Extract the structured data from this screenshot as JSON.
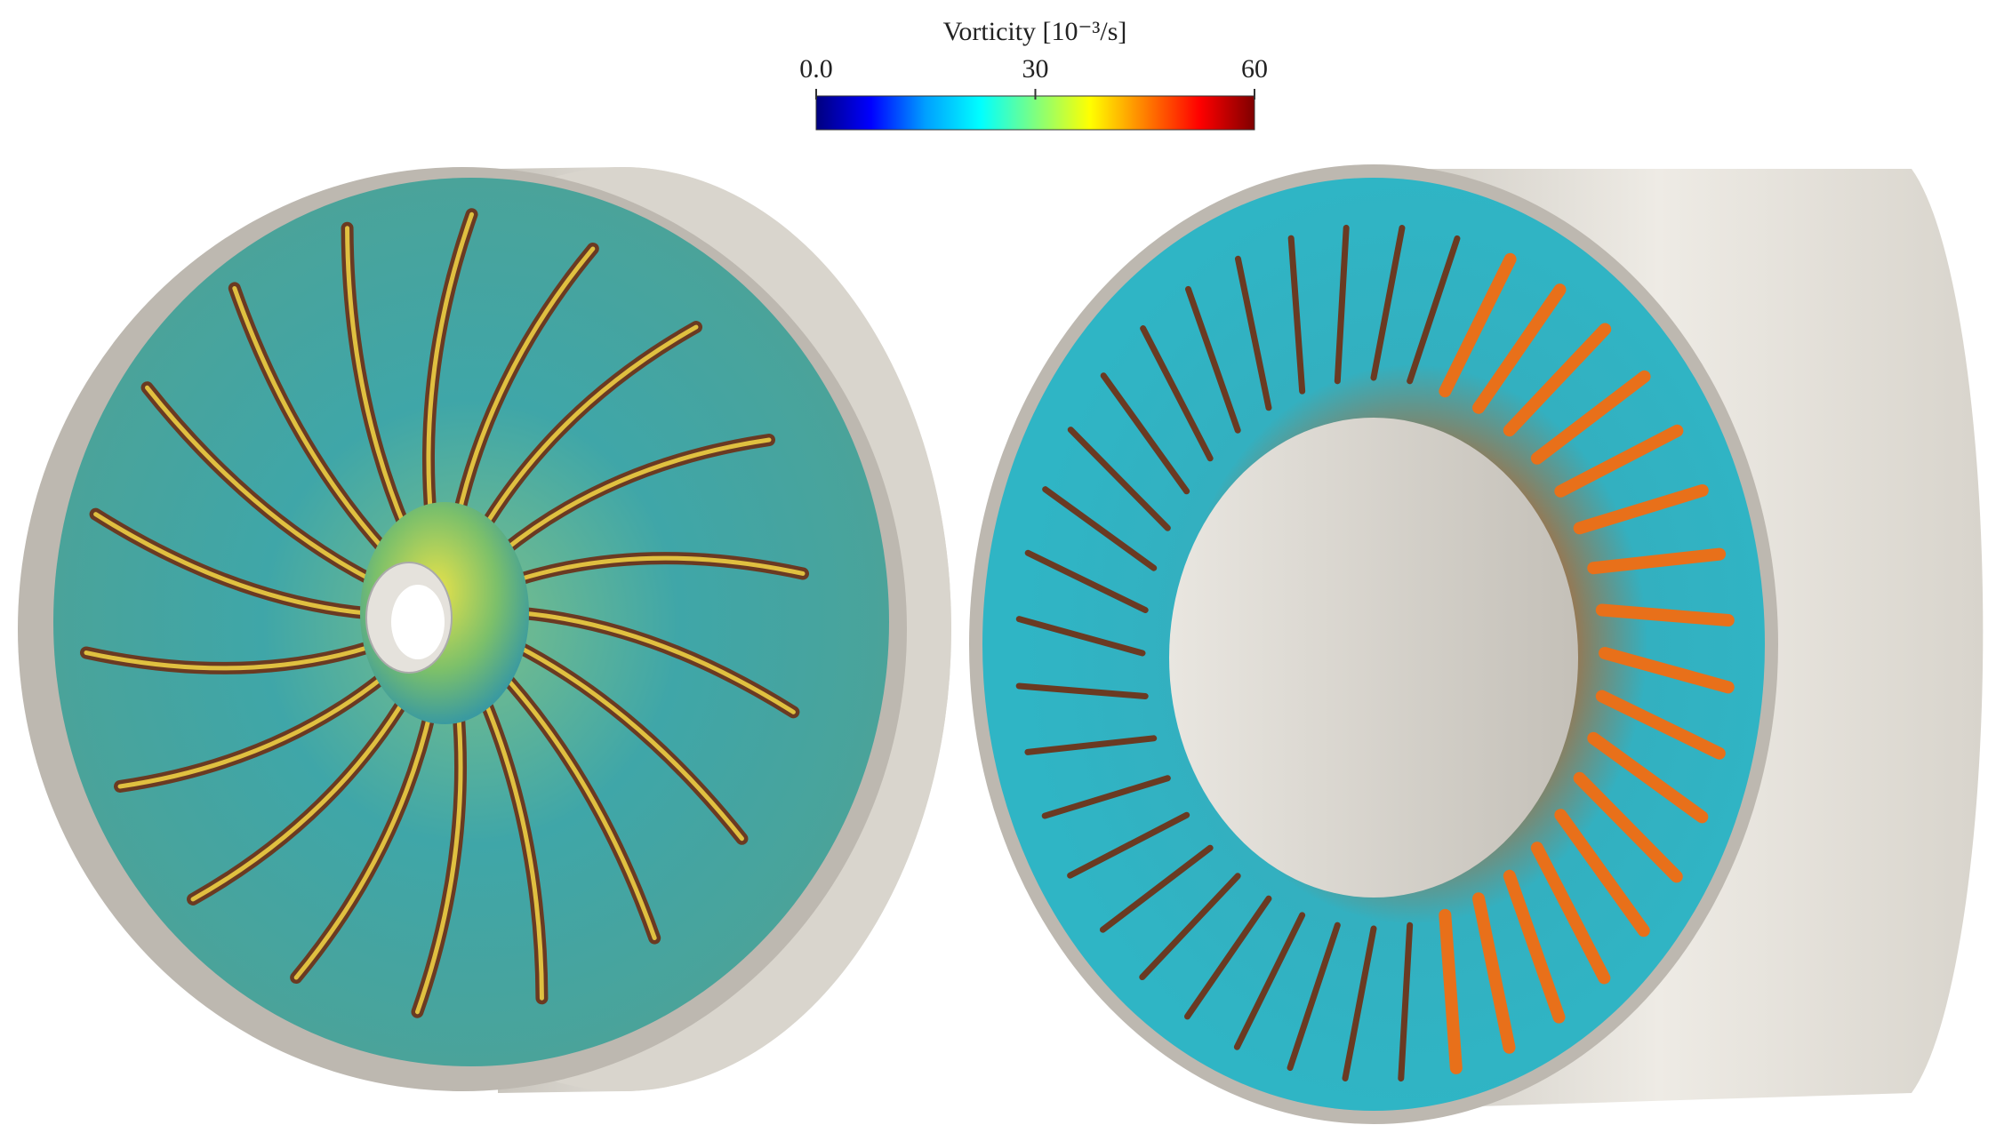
{
  "colorbar": {
    "title": "Vorticity [10⁻³/s]",
    "lim": [
      0,
      60
    ],
    "ticks": [
      {
        "value": 0,
        "label": "0.0"
      },
      30,
      60
    ],
    "colors": [
      "#00007f",
      "#0000ff",
      "#00a0ff",
      "#00ffff",
      "#7fff7f",
      "#ffff00",
      "#ff7f00",
      "#ff0000",
      "#7f0000"
    ]
  }
}
